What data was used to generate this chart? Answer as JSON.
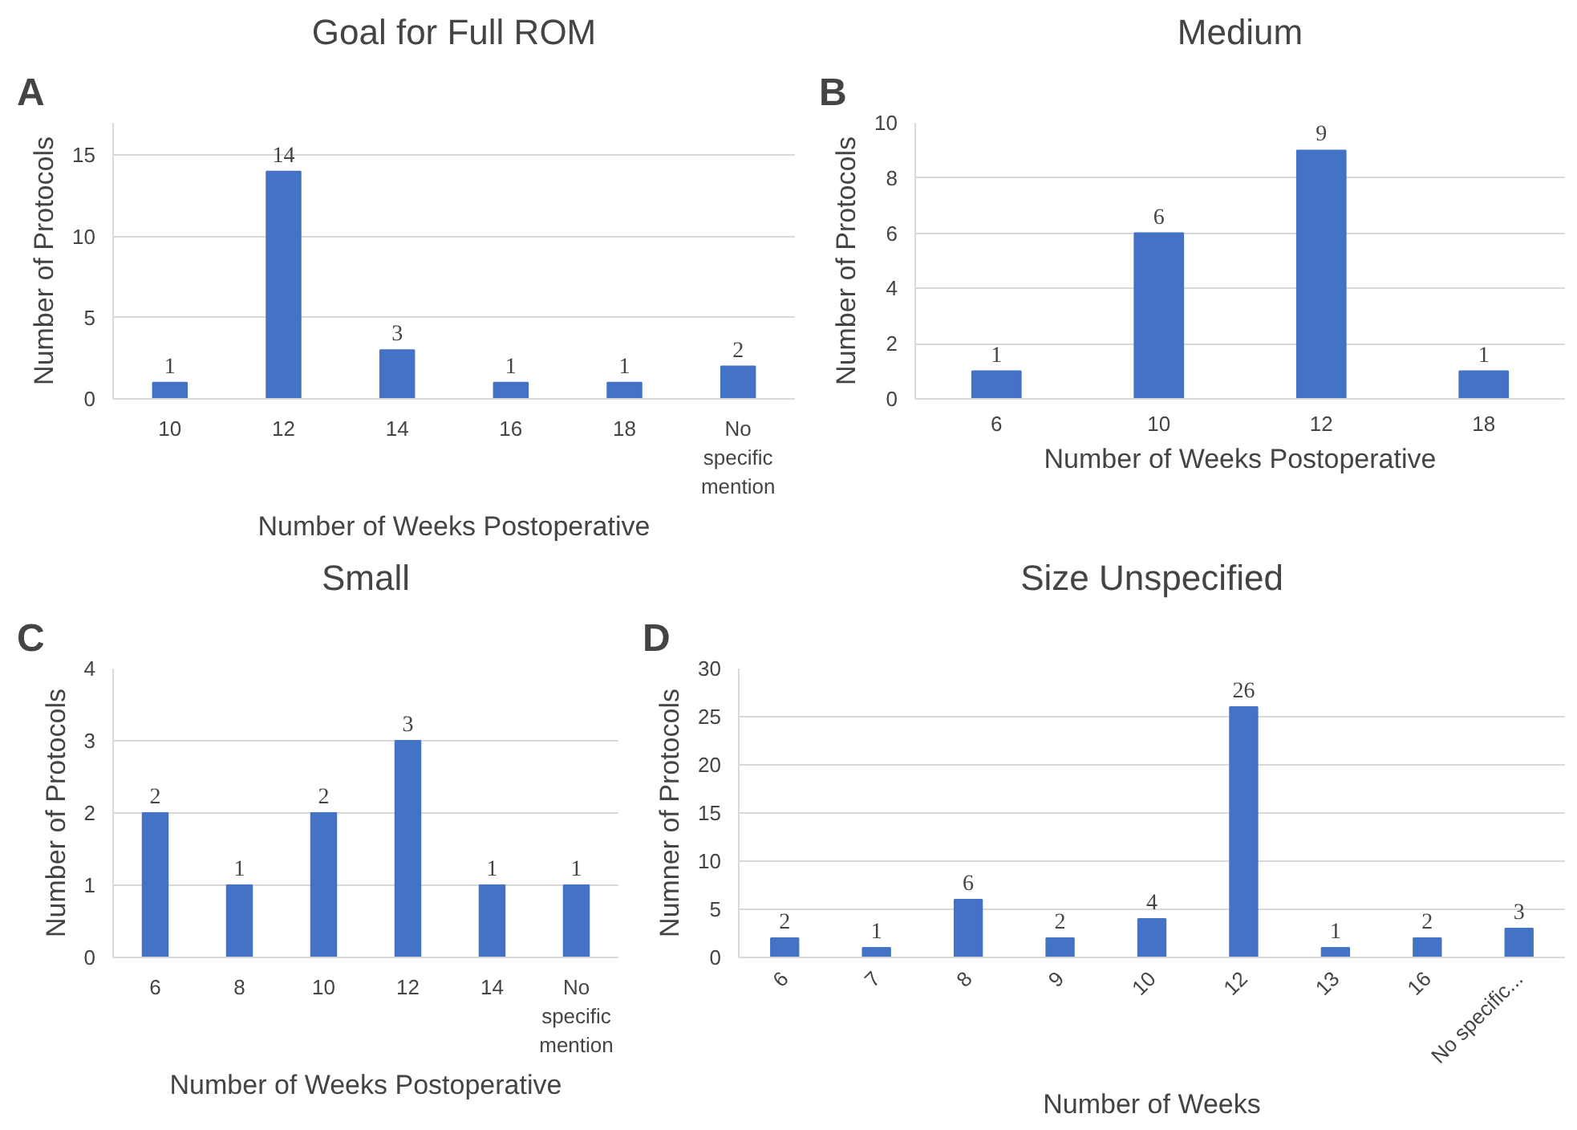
{
  "chart_data": [
    {
      "type": "bar",
      "title": "Goal for Full ROM",
      "xlabel": "Number of Weeks Postoperative",
      "ylabel": "Number of Protocols",
      "annotations": [
        "A"
      ],
      "categories": [
        "10",
        "12",
        "14",
        "16",
        "18",
        "No specific mention"
      ],
      "values": [
        1,
        14,
        3,
        1,
        1,
        2
      ],
      "color": "#4472c4",
      "ylim": [
        0,
        17
      ],
      "yticks": [
        0,
        5,
        10,
        15
      ],
      "grid": "y",
      "data_labels": true
    },
    {
      "type": "bar",
      "title": "Medium",
      "xlabel": "Number of Weeks Postoperative",
      "ylabel": "Number of Protocols",
      "annotations": [
        "B"
      ],
      "categories": [
        "6",
        "10",
        "12",
        "18"
      ],
      "values": [
        1,
        6,
        9,
        1
      ],
      "color": "#4472c4",
      "ylim": [
        0,
        10
      ],
      "yticks": [
        0,
        2,
        4,
        6,
        8,
        10
      ],
      "grid": "y",
      "data_labels": true
    },
    {
      "type": "bar",
      "title": "Small",
      "xlabel": "Number of Weeks Postoperative",
      "ylabel": "Number of Protocols",
      "annotations": [
        "C"
      ],
      "categories": [
        "6",
        "8",
        "10",
        "12",
        "14",
        "No specific mention"
      ],
      "values": [
        2,
        1,
        2,
        3,
        1,
        1
      ],
      "color": "#4472c4",
      "ylim": [
        0,
        4
      ],
      "yticks": [
        0,
        1,
        2,
        3,
        4
      ],
      "grid": "y",
      "data_labels": true
    },
    {
      "type": "bar",
      "title": "Size Unspecified",
      "xlabel": "Number of Weeks",
      "ylabel": "Numner of Protocols",
      "annotations": [
        "D"
      ],
      "categories": [
        "6",
        "7",
        "8",
        "9",
        "10",
        "12",
        "13",
        "16",
        "No specific..."
      ],
      "values": [
        2,
        1,
        6,
        2,
        4,
        26,
        1,
        2,
        3
      ],
      "color": "#4472c4",
      "ylim": [
        0,
        30
      ],
      "yticks": [
        0,
        5,
        10,
        15,
        20,
        25,
        30
      ],
      "grid": "y",
      "data_labels": true
    }
  ]
}
